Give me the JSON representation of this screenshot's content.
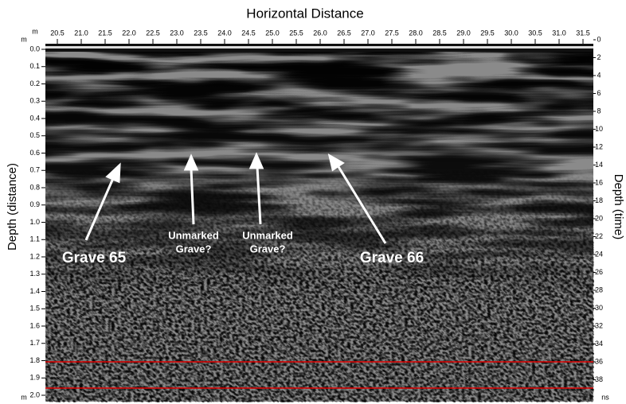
{
  "header": {
    "title": "Horizontal Distance"
  },
  "axes": {
    "x_unit": "m",
    "x_ticks": [
      "20.5",
      "21.0",
      "21.5",
      "22.0",
      "22.5",
      "23.0",
      "23.5",
      "24.0",
      "24.5",
      "25.0",
      "25.5",
      "26.0",
      "26.5",
      "27.0",
      "27.5",
      "28.0",
      "28.5",
      "29.0",
      "29.5",
      "30.0",
      "30.5",
      "31.0",
      "31.5"
    ],
    "left_label": "Depth (distance)",
    "left_unit_top": "m",
    "left_unit_bottom": "m",
    "left_ticks": [
      "0.0",
      "0.1",
      "0.2",
      "0.3",
      "0.4",
      "0.5",
      "0.6",
      "0.7",
      "0.8",
      "0.9",
      "1.0",
      "1.1",
      "1.2",
      "1.3",
      "1.4",
      "1.5",
      "1.6",
      "1.7",
      "1.8",
      "1.9",
      "2.0"
    ],
    "right_label": "Depth (time)",
    "right_unit": "ns",
    "right_ticks": [
      0,
      2,
      4,
      6,
      8,
      10,
      12,
      14,
      16,
      18,
      20,
      22,
      24,
      26,
      28,
      30,
      32,
      34,
      36,
      38
    ]
  },
  "annotations": [
    {
      "lines": [
        "Grave 65"
      ]
    },
    {
      "lines": [
        "Unmarked",
        "Grave?"
      ]
    },
    {
      "lines": [
        "Unmarked",
        "Grave?"
      ]
    },
    {
      "lines": [
        "Grave 66"
      ]
    }
  ]
}
